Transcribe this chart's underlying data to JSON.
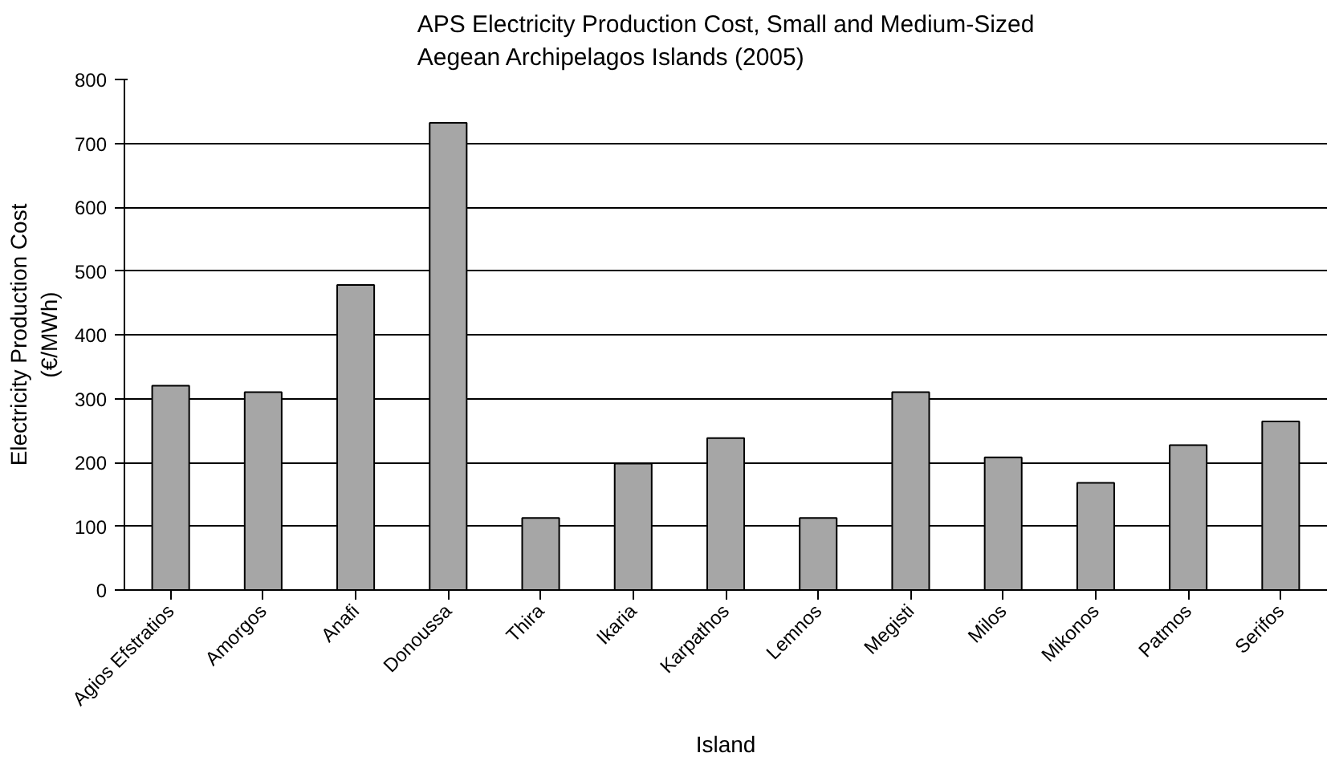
{
  "chart_data": {
    "type": "bar",
    "title": "APS Electricity Production Cost, Small and Medium-Sized\nAegean Archipelagos Islands (2005)",
    "xlabel": "Island",
    "ylabel": "Electricity Production Cost\n(€/MWh)",
    "categories": [
      "Agios Efstratios",
      "Amorgos",
      "Anafi",
      "Donoussa",
      "Thira",
      "Ikaria",
      "Karpathos",
      "Lemnos",
      "Megisti",
      "Milos",
      "Mikonos",
      "Patmos",
      "Serifos"
    ],
    "values": [
      320,
      310,
      478,
      732,
      113,
      198,
      238,
      113,
      310,
      208,
      168,
      227,
      264
    ],
    "color": "#a6a6a6",
    "ylim": [
      0,
      800
    ],
    "yticks": [
      0,
      100,
      200,
      300,
      400,
      500,
      600,
      700,
      800
    ],
    "grid": "y"
  }
}
